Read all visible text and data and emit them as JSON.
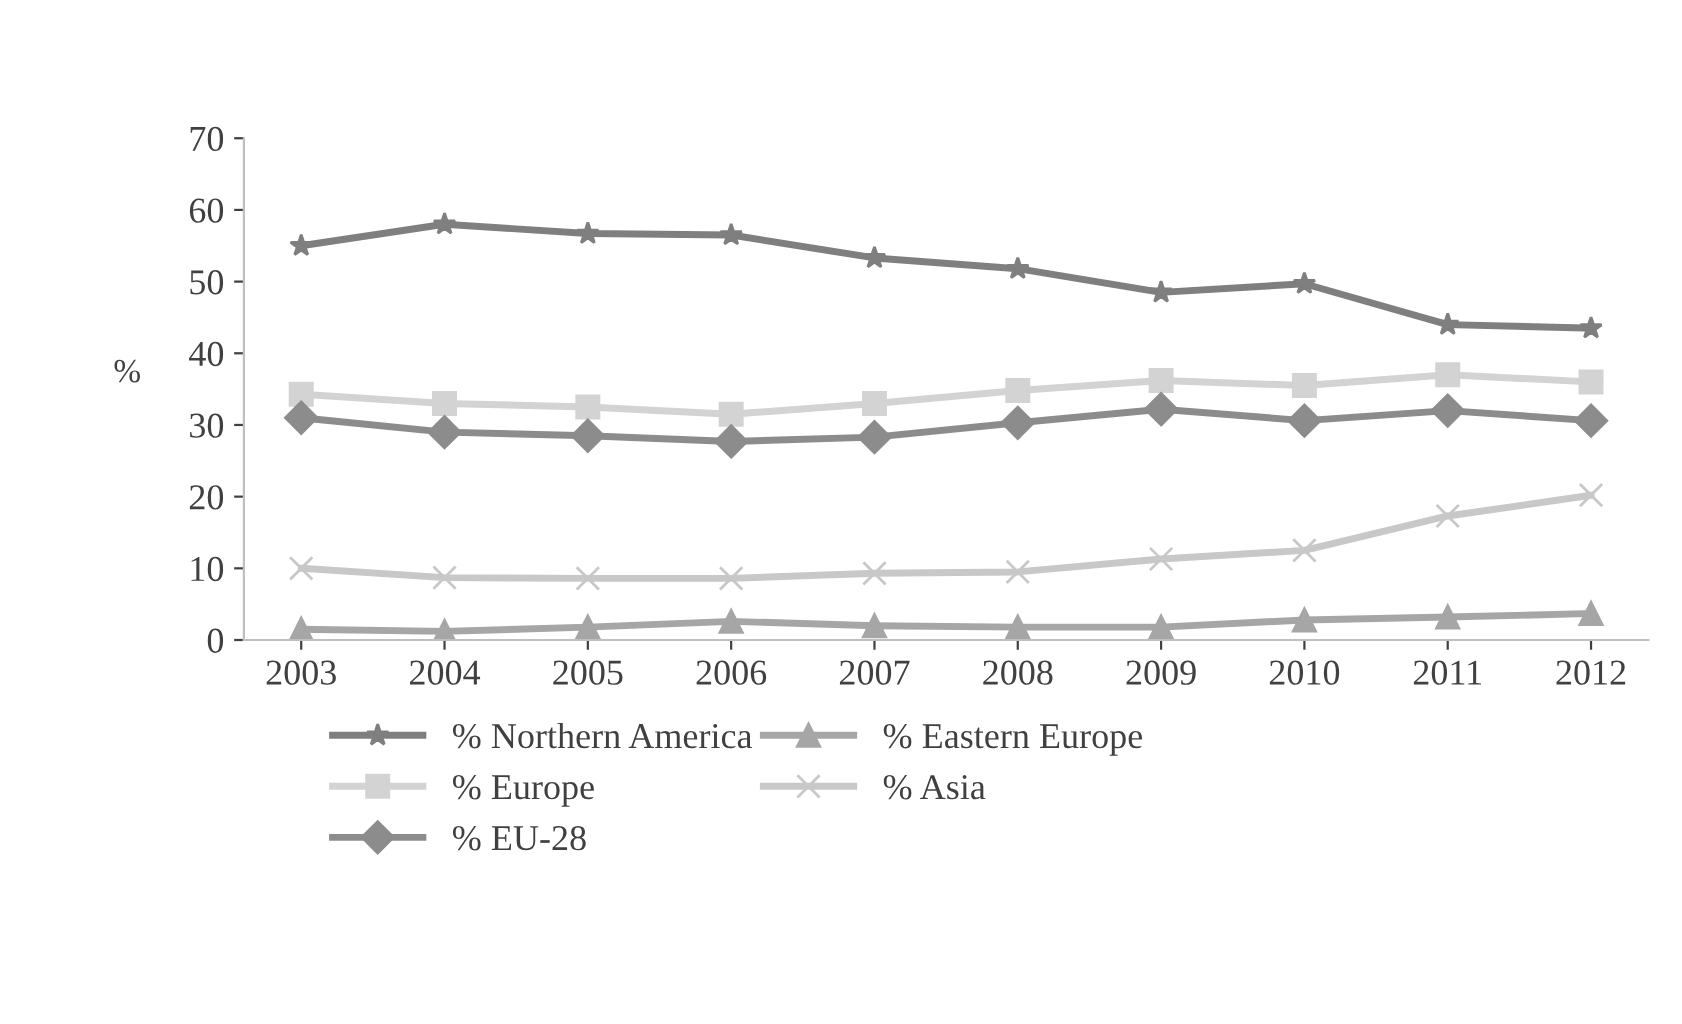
{
  "chart_data": {
    "type": "line",
    "ylabel": "%",
    "categories": [
      "2003",
      "2004",
      "2005",
      "2006",
      "2007",
      "2008",
      "2009",
      "2010",
      "2011",
      "2012"
    ],
    "ylim": [
      0,
      70
    ],
    "yticks": [
      0,
      10,
      20,
      30,
      40,
      50,
      60,
      70
    ],
    "grid": false,
    "legend": "bottom",
    "series": [
      {
        "name": "% Northern America",
        "color": "#7f7f7f",
        "marker": "star",
        "values": [
          55,
          58,
          56.7,
          56.5,
          53.3,
          51.8,
          48.5,
          49.7,
          44,
          43.5
        ]
      },
      {
        "name": "% Europe",
        "color": "#d3d3d3",
        "marker": "square",
        "values": [
          34.3,
          33,
          32.5,
          31.5,
          33,
          34.8,
          36.2,
          35.5,
          37,
          36
        ]
      },
      {
        "name": "% EU-28",
        "color": "#8c8c8c",
        "marker": "diamond",
        "values": [
          31,
          29,
          28.5,
          27.7,
          28.3,
          30.3,
          32.2,
          30.6,
          32,
          30.6
        ]
      },
      {
        "name": "% Eastern Europe",
        "color": "#a6a6a6",
        "marker": "triangle",
        "values": [
          1.5,
          1.2,
          1.8,
          2.6,
          2,
          1.8,
          1.8,
          2.8,
          3.2,
          3.7
        ]
      },
      {
        "name": "% Asia",
        "color": "#c8c8c8",
        "marker": "cross",
        "values": [
          10,
          8.7,
          8.6,
          8.6,
          9.3,
          9.5,
          11.3,
          12.5,
          17.3,
          20.2
        ]
      }
    ]
  }
}
